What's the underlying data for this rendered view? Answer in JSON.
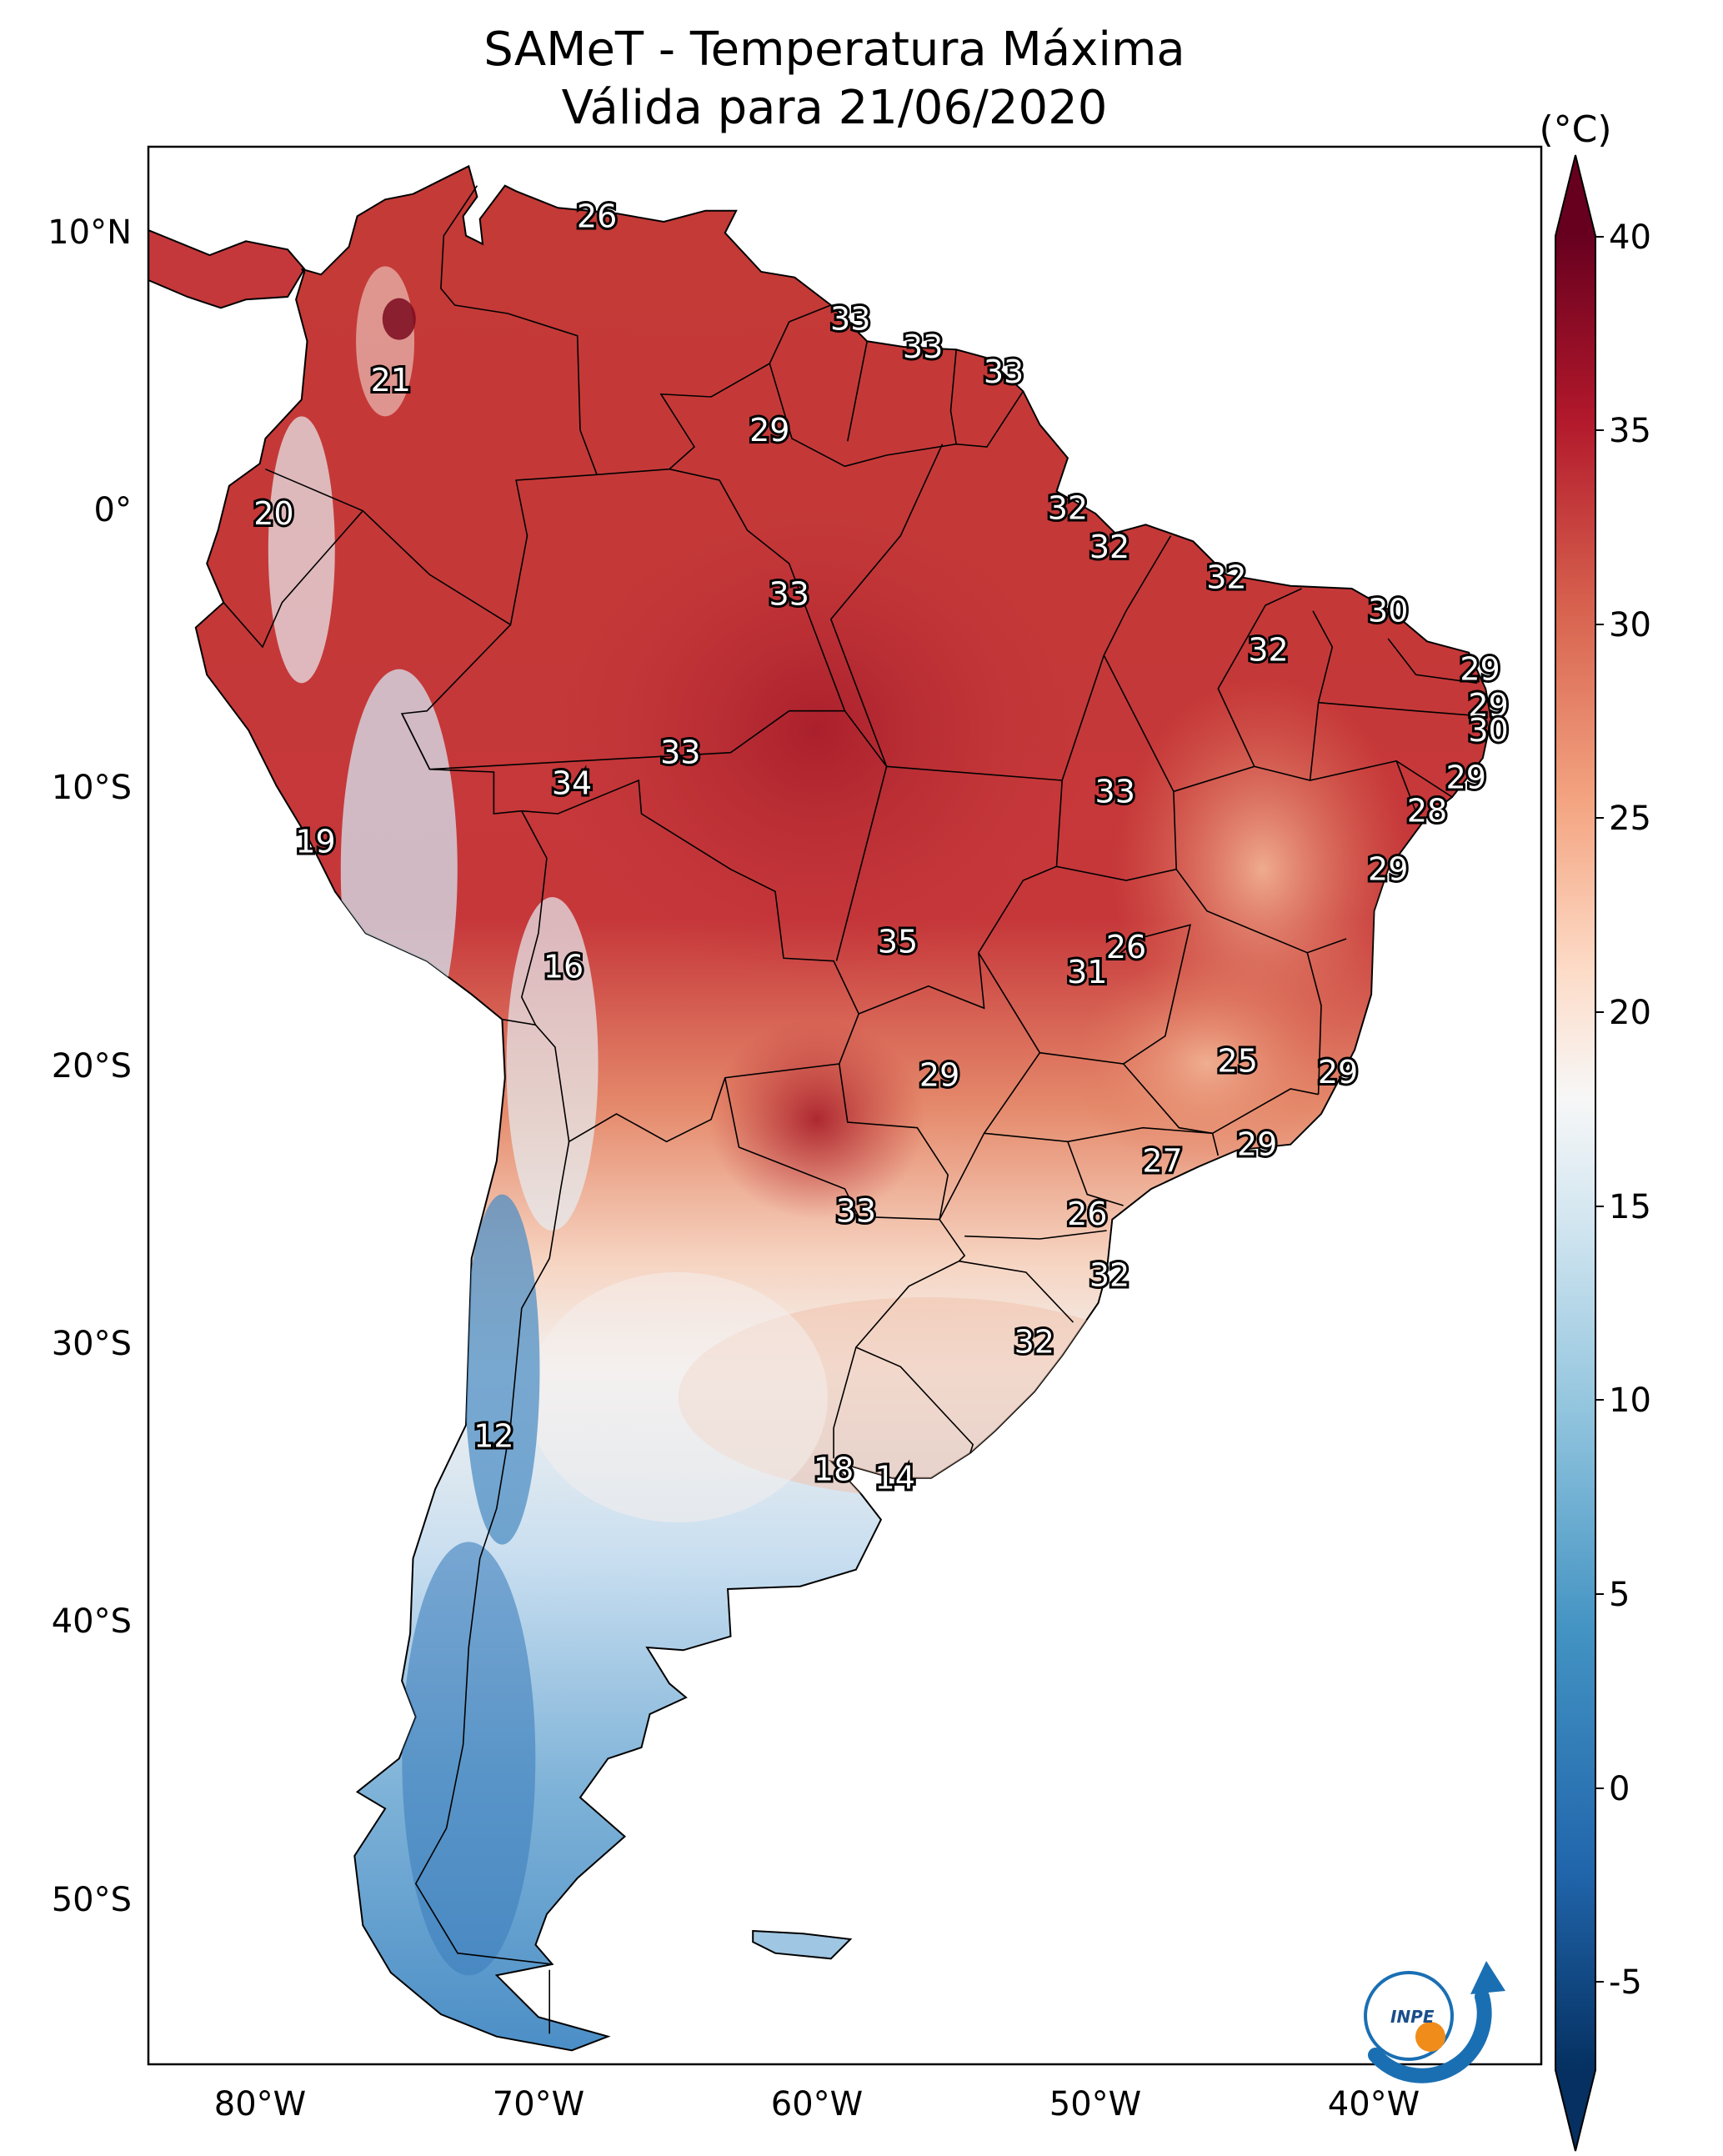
{
  "title": {
    "line1": "SAMeT - Temperatura Máxima",
    "line2": "Válida para 21/06/2020"
  },
  "colorbar": {
    "unit": "(°C)",
    "ticks": [
      "40",
      "35",
      "30",
      "25",
      "20",
      "15",
      "10",
      "5",
      "0",
      "-5"
    ],
    "range": [
      -5,
      40
    ],
    "extend": "both",
    "colormap": "red-white-blue (RdBu reversed)"
  },
  "axes": {
    "lat_labels": [
      "10°N",
      "0°",
      "10°S",
      "20°S",
      "30°S",
      "40°S",
      "50°S"
    ],
    "lon_labels": [
      "80°W",
      "70°W",
      "60°W",
      "50°W",
      "40°W"
    ],
    "lon_range": [
      -83,
      -33
    ],
    "lat_range": [
      -56,
      13
    ]
  },
  "colors": {
    "hot": "#b2182b",
    "warm": "#ef8a62",
    "neutral": "#f7f7f7",
    "cool": "#67a9cf",
    "cold": "#2166ac"
  },
  "station_labels": [
    {
      "text": "26",
      "lon": -66.9,
      "lat": 10.5
    },
    {
      "text": "21",
      "lon": -74.3,
      "lat": 4.6
    },
    {
      "text": "33",
      "lon": -57.8,
      "lat": 6.8
    },
    {
      "text": "33",
      "lon": -55.2,
      "lat": 5.8
    },
    {
      "text": "33",
      "lon": -52.3,
      "lat": 4.9
    },
    {
      "text": "29",
      "lon": -60.7,
      "lat": 2.8
    },
    {
      "text": "20",
      "lon": -78.5,
      "lat": -0.2
    },
    {
      "text": "32",
      "lon": -50.0,
      "lat": 0.0
    },
    {
      "text": "32",
      "lon": -48.5,
      "lat": -1.4
    },
    {
      "text": "33",
      "lon": -60.0,
      "lat": -3.1
    },
    {
      "text": "32",
      "lon": -44.3,
      "lat": -2.5
    },
    {
      "text": "30",
      "lon": -38.5,
      "lat": -3.7
    },
    {
      "text": "32",
      "lon": -42.8,
      "lat": -5.1
    },
    {
      "text": "29",
      "lon": -35.2,
      "lat": -5.8
    },
    {
      "text": "29",
      "lon": -34.9,
      "lat": -7.1
    },
    {
      "text": "30",
      "lon": -34.9,
      "lat": -8.0
    },
    {
      "text": "29",
      "lon": -35.7,
      "lat": -9.7
    },
    {
      "text": "28",
      "lon": -37.1,
      "lat": -10.9
    },
    {
      "text": "29",
      "lon": -38.5,
      "lat": -13.0
    },
    {
      "text": "33",
      "lon": -63.9,
      "lat": -8.8
    },
    {
      "text": "34",
      "lon": -67.8,
      "lat": -9.9
    },
    {
      "text": "33",
      "lon": -48.3,
      "lat": -10.2
    },
    {
      "text": "19",
      "lon": -77.0,
      "lat": -12.0
    },
    {
      "text": "35",
      "lon": -56.1,
      "lat": -15.6
    },
    {
      "text": "26",
      "lon": -47.9,
      "lat": -15.8
    },
    {
      "text": "31",
      "lon": -49.3,
      "lat": -16.7
    },
    {
      "text": "16",
      "lon": -68.1,
      "lat": -16.5
    },
    {
      "text": "25",
      "lon": -43.9,
      "lat": -19.9
    },
    {
      "text": "29",
      "lon": -40.3,
      "lat": -20.3
    },
    {
      "text": "29",
      "lon": -54.6,
      "lat": -20.4
    },
    {
      "text": "27",
      "lon": -46.6,
      "lat": -23.5
    },
    {
      "text": "29",
      "lon": -43.2,
      "lat": -22.9
    },
    {
      "text": "33",
      "lon": -57.6,
      "lat": -25.3
    },
    {
      "text": "26",
      "lon": -49.3,
      "lat": -25.4
    },
    {
      "text": "32",
      "lon": -48.5,
      "lat": -27.6
    },
    {
      "text": "32",
      "lon": -51.2,
      "lat": -30.0
    },
    {
      "text": "12",
      "lon": -70.6,
      "lat": -33.4
    },
    {
      "text": "18",
      "lon": -58.4,
      "lat": -34.6
    },
    {
      "text": "14",
      "lon": -56.2,
      "lat": -34.9
    }
  ],
  "logo": {
    "text": "INPE"
  }
}
